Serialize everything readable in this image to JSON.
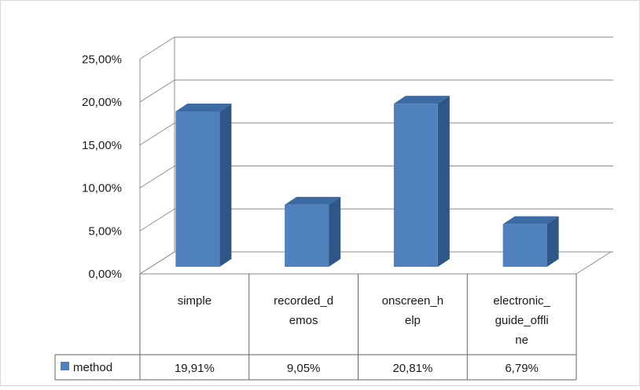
{
  "chart_data": {
    "type": "bar",
    "style": "3d-column",
    "categories": [
      [
        "simple"
      ],
      [
        "recorded_d",
        "emos"
      ],
      [
        "onscreen_h",
        "elp"
      ],
      [
        "electronic_",
        "guide_offli",
        "ne"
      ]
    ],
    "series": [
      {
        "name": "method",
        "values": [
          19.91,
          9.05,
          20.81,
          6.79
        ],
        "color": "#4f81bd"
      }
    ],
    "value_labels": [
      "19,91%",
      "9,05%",
      "20,81%",
      "6,79%"
    ],
    "y_ticks": [
      "0,00%",
      "5,00%",
      "10,00%",
      "15,00%",
      "20,00%",
      "25,00%"
    ],
    "ylim": [
      0,
      25
    ],
    "grid": true,
    "legend": "data-table",
    "colors": {
      "bar_front": "#4f81bd",
      "bar_side": "#2e5687",
      "bar_top": "#3c6aa3",
      "grid": "#8c8c8c",
      "text": "#1a1a1a"
    }
  }
}
